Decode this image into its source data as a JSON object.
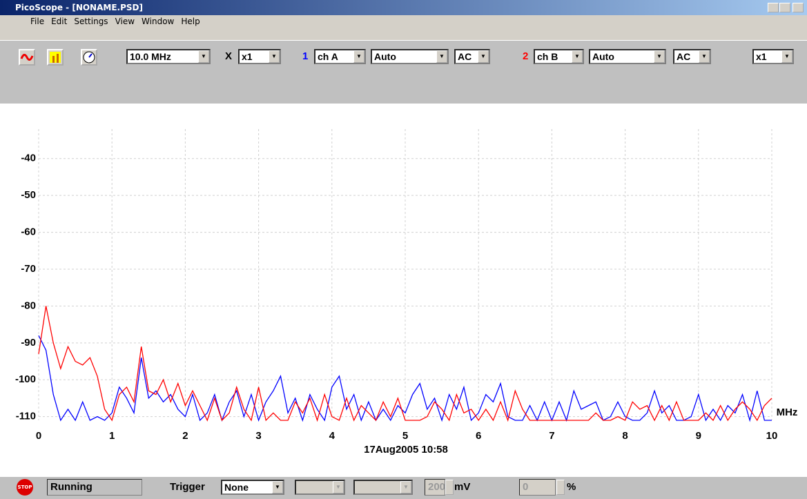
{
  "window": {
    "title": "PicoScope - [NONAME.PSD]",
    "menu": [
      "File",
      "Edit",
      "Settings",
      "View",
      "Window",
      "Help"
    ]
  },
  "toolbar": {
    "timebase": "10.0 MHz",
    "zoom_label": "X",
    "zoom": "x1",
    "ch1_number": "1",
    "ch1_channel": "ch A",
    "ch1_range": "Auto",
    "ch1_coupling": "AC",
    "ch2_number": "2",
    "ch2_channel": "ch B",
    "ch2_range": "Auto",
    "ch2_coupling": "AC",
    "y_zoom": "x1"
  },
  "status": {
    "stop_icon": "STOP",
    "state": "Running",
    "trigger_label": "Trigger",
    "trigger": "None",
    "level": "200",
    "level_unit": "mV",
    "delay": "0",
    "delay_unit": "%"
  },
  "chart_data": {
    "type": "line",
    "x_unit": "MHz",
    "timestamp": "17Aug2005  10:58",
    "xlim": [
      0,
      10
    ],
    "xticks": [
      0,
      1,
      2,
      3,
      4,
      5,
      6,
      7,
      8,
      9,
      10
    ],
    "ylim": [
      -111,
      -32
    ],
    "yticks": [
      -40,
      -50,
      -60,
      -70,
      -80,
      -90,
      -100,
      -110
    ],
    "grid": true,
    "x": [
      0,
      0.1,
      0.2,
      0.3,
      0.4,
      0.5,
      0.6,
      0.7,
      0.8,
      0.9,
      1,
      1.1,
      1.2,
      1.3,
      1.4,
      1.5,
      1.6,
      1.7,
      1.8,
      1.9,
      2,
      2.1,
      2.2,
      2.3,
      2.4,
      2.5,
      2.6,
      2.7,
      2.8,
      2.9,
      3,
      3.1,
      3.2,
      3.3,
      3.4,
      3.5,
      3.6,
      3.7,
      3.8,
      3.9,
      4,
      4.1,
      4.2,
      4.3,
      4.4,
      4.5,
      4.6,
      4.7,
      4.8,
      4.9,
      5,
      5.1,
      5.2,
      5.3,
      5.4,
      5.5,
      5.6,
      5.7,
      5.8,
      5.9,
      6,
      6.1,
      6.2,
      6.3,
      6.4,
      6.5,
      6.6,
      6.7,
      6.8,
      6.9,
      7,
      7.1,
      7.2,
      7.3,
      7.4,
      7.5,
      7.6,
      7.7,
      7.8,
      7.9,
      8,
      8.1,
      8.2,
      8.3,
      8.4,
      8.5,
      8.6,
      8.7,
      8.8,
      8.9,
      9,
      9.1,
      9.2,
      9.3,
      9.4,
      9.5,
      9.6,
      9.7,
      9.8,
      9.9,
      10
    ],
    "series": [
      {
        "color": "#0000ff",
        "values": [
          -88,
          -92,
          -104,
          -111,
          -108,
          -111,
          -106,
          -111,
          -110,
          -111,
          -109,
          -102,
          -105,
          -109,
          -94,
          -105,
          -103,
          -106,
          -104,
          -108,
          -110,
          -104,
          -111,
          -109,
          -104,
          -111,
          -106,
          -103,
          -110,
          -104,
          -111,
          -106,
          -103,
          -99,
          -109,
          -105,
          -111,
          -104,
          -108,
          -111,
          -102,
          -99,
          -108,
          -104,
          -111,
          -106,
          -111,
          -108,
          -111,
          -107,
          -109,
          -104,
          -101,
          -108,
          -105,
          -111,
          -104,
          -108,
          -102,
          -111,
          -109,
          -104,
          -106,
          -101,
          -110,
          -111,
          -111,
          -107,
          -111,
          -106,
          -111,
          -106,
          -111,
          -103,
          -108,
          -107,
          -106,
          -111,
          -110,
          -106,
          -110,
          -111,
          -111,
          -109,
          -103,
          -109,
          -107,
          -111,
          -111,
          -110,
          -104,
          -111,
          -108,
          -111,
          -107,
          -109,
          -104,
          -111,
          -103,
          -111,
          -111
        ]
      },
      {
        "color": "#ff0000",
        "values": [
          -93,
          -80,
          -90,
          -97,
          -91,
          -95,
          -96,
          -94,
          -99,
          -108,
          -111,
          -104,
          -102,
          -106,
          -91,
          -103,
          -104,
          -100,
          -106,
          -101,
          -107,
          -103,
          -107,
          -111,
          -105,
          -111,
          -109,
          -102,
          -108,
          -111,
          -102,
          -111,
          -109,
          -111,
          -111,
          -106,
          -109,
          -105,
          -111,
          -104,
          -110,
          -111,
          -105,
          -111,
          -107,
          -109,
          -111,
          -106,
          -110,
          -105,
          -111,
          -111,
          -111,
          -110,
          -106,
          -108,
          -111,
          -104,
          -109,
          -108,
          -111,
          -108,
          -111,
          -106,
          -111,
          -103,
          -108,
          -111,
          -111,
          -111,
          -111,
          -111,
          -111,
          -111,
          -111,
          -111,
          -109,
          -111,
          -111,
          -110,
          -111,
          -106,
          -108,
          -107,
          -111,
          -107,
          -111,
          -106,
          -111,
          -111,
          -111,
          -109,
          -111,
          -107,
          -111,
          -108,
          -106,
          -108,
          -111,
          -107,
          -105
        ]
      }
    ]
  }
}
